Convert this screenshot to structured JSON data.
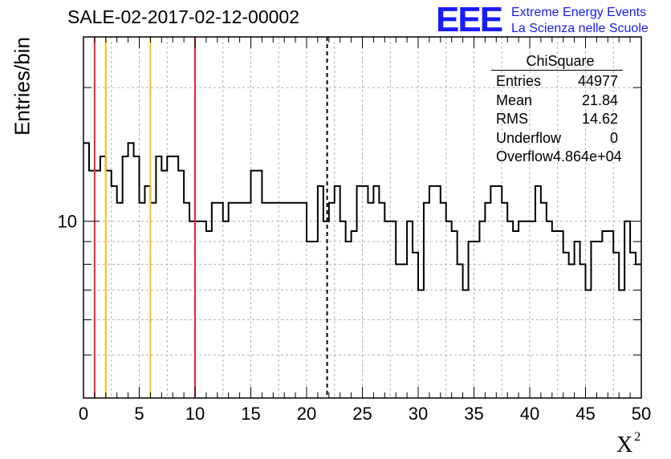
{
  "header": {
    "title": "SALE-02-2017-02-12-00002",
    "logo_text": "EEE",
    "logo_line1": "Extreme Energy Events",
    "logo_line2": "La Scienza nelle Scuole"
  },
  "stats_box": {
    "title": "ChiSquare",
    "rows": [
      {
        "label": "Entries",
        "value": "44977"
      },
      {
        "label": "Mean",
        "value": "21.84"
      },
      {
        "label": "RMS",
        "value": "14.62"
      },
      {
        "label": "Underflow",
        "value": "0"
      },
      {
        "label": "Overflow",
        "value": "4.864e+04"
      }
    ]
  },
  "colors": {
    "red_line": "#e8262d",
    "yellow_line": "#f5c313",
    "grid": "#b0b0b0",
    "logo": "#1a1aff"
  },
  "chart_data": {
    "type": "histogram",
    "xlabel": "X",
    "xlabel_superscript": "2",
    "ylabel": "Entries/bin",
    "xlim": [
      0,
      50
    ],
    "yscale": "log",
    "ylim": [
      4.0,
      26.0
    ],
    "x_ticks": [
      "0",
      "5",
      "10",
      "15",
      "20",
      "25",
      "30",
      "35",
      "40",
      "45",
      "50"
    ],
    "y_tick_labels": [
      {
        "value": 10,
        "label": "10"
      }
    ],
    "grid": true,
    "bin_width": 0.5,
    "bin_values": [
      15,
      13,
      13,
      14,
      13,
      12,
      11,
      14,
      15,
      14,
      11,
      12,
      11,
      14,
      13,
      14,
      14,
      13,
      11,
      10,
      10,
      10,
      9.5,
      11,
      11,
      10,
      11,
      11,
      11,
      11,
      13,
      13,
      11,
      11,
      11,
      11,
      11,
      11,
      11,
      11,
      9,
      9,
      12,
      10,
      11,
      12,
      10,
      9,
      9.5,
      12,
      12,
      11,
      12,
      11,
      10,
      10,
      8,
      8,
      10,
      8.5,
      7,
      11,
      12,
      12,
      11,
      10,
      9.5,
      8,
      7,
      9,
      9,
      10,
      11,
      12,
      12,
      11,
      10,
      9.5,
      10,
      10,
      10,
      12,
      11,
      10,
      9.5,
      9.5,
      8.5,
      8,
      9,
      8,
      7,
      9,
      9,
      9.5,
      9.5,
      8.5,
      7,
      10,
      8.5,
      8
    ],
    "vertical_lines": [
      {
        "x": 1,
        "style": "solid",
        "color": "red"
      },
      {
        "x": 2,
        "style": "solid",
        "color": "yellow"
      },
      {
        "x": 6,
        "style": "solid",
        "color": "yellow"
      },
      {
        "x": 10,
        "style": "solid",
        "color": "red"
      },
      {
        "x": 21.84,
        "style": "dashed",
        "color": "black"
      }
    ]
  }
}
